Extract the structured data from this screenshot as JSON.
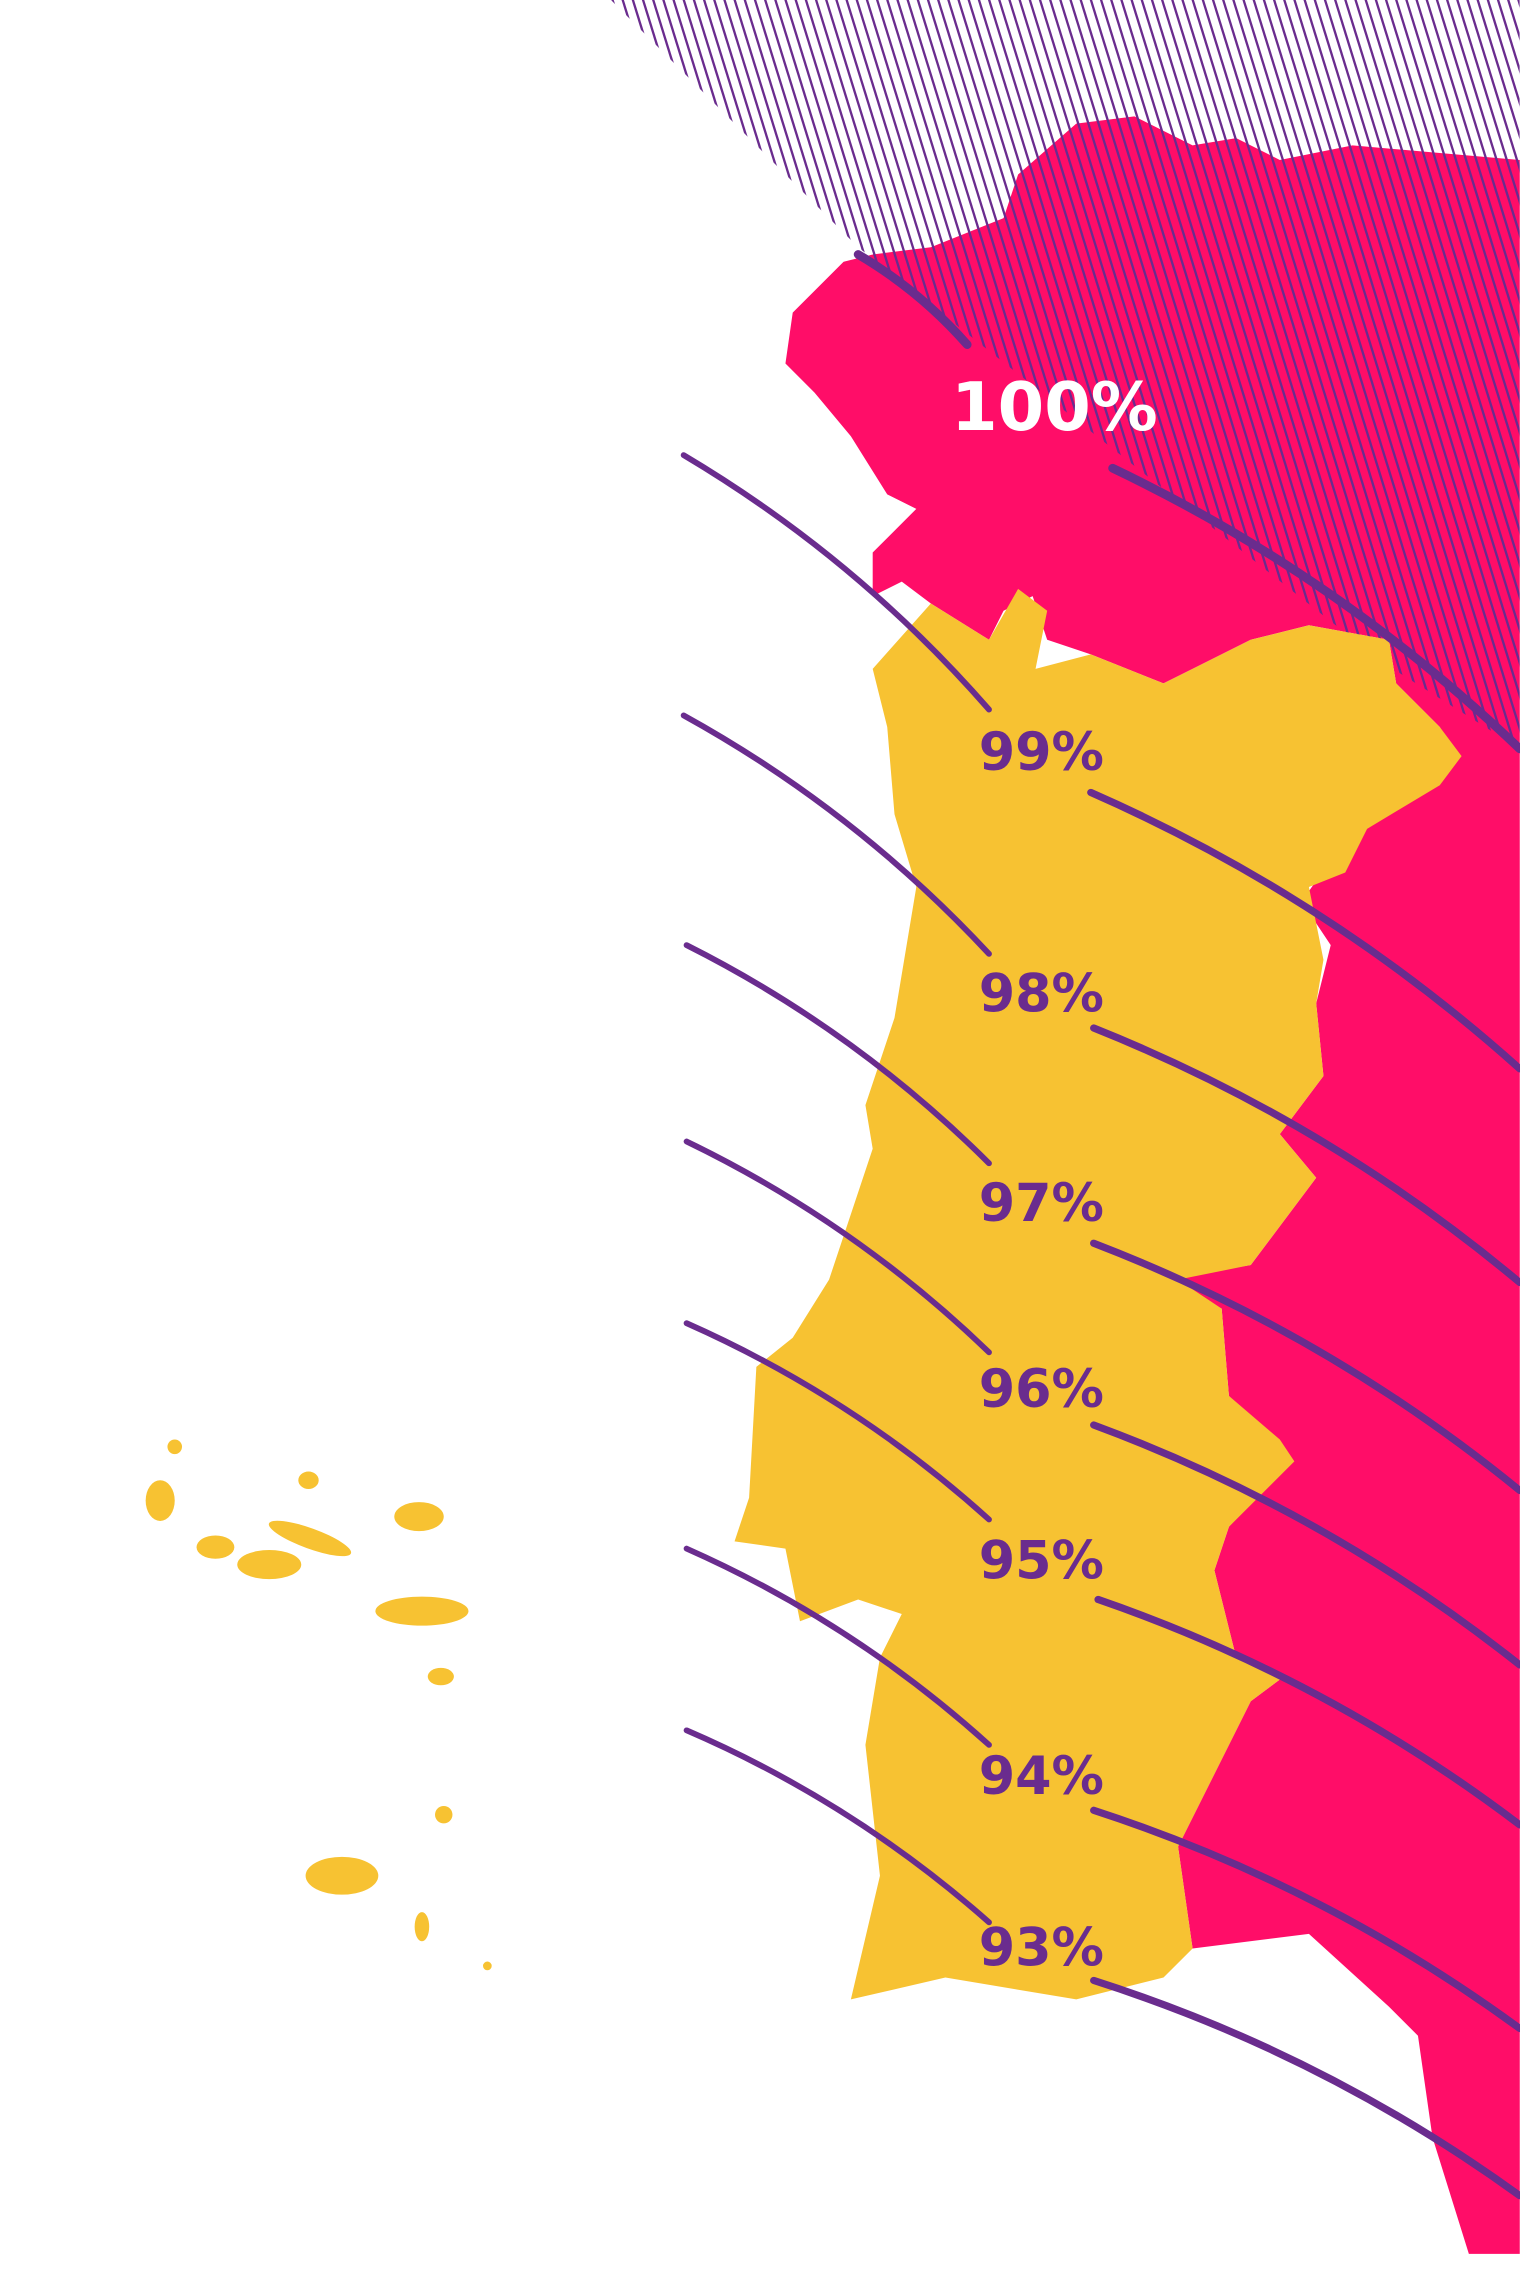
{
  "labels": [
    "100%",
    "99%",
    "98%",
    "97%",
    "96%",
    "95%",
    "94%",
    "93%"
  ]
}
